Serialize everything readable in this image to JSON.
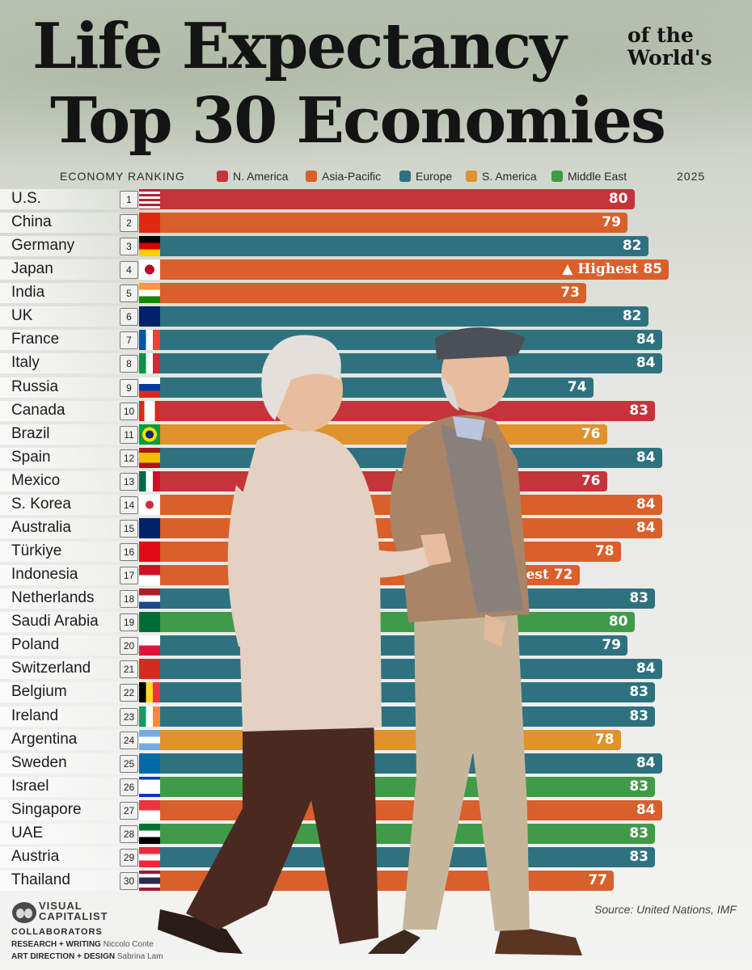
{
  "title": {
    "line1": "Life Expectancy",
    "side_line1": "of the",
    "side_line2": "World's",
    "line2": "Top 30 Economies"
  },
  "header": {
    "ranking_label": "ECONOMY RANKING",
    "year_label": "2025"
  },
  "legend": [
    {
      "label": "N. America",
      "color": "#c4343a"
    },
    {
      "label": "Asia-Pacific",
      "color": "#d95f2b"
    },
    {
      "label": "Europe",
      "color": "#2e7280"
    },
    {
      "label": "S. America",
      "color": "#e0922c"
    },
    {
      "label": "Middle East",
      "color": "#3f9b48"
    }
  ],
  "chart_data": {
    "type": "bar",
    "orientation": "horizontal",
    "title": "Life Expectancy of the World's Top 30 Economies",
    "xlabel": "",
    "ylabel": "",
    "xlim": [
      0,
      85
    ],
    "categories": [
      "U.S.",
      "China",
      "Germany",
      "Japan",
      "India",
      "UK",
      "France",
      "Italy",
      "Russia",
      "Canada",
      "Brazil",
      "Spain",
      "Mexico",
      "S. Korea",
      "Australia",
      "Türkiye",
      "Indonesia",
      "Netherlands",
      "Saudi Arabia",
      "Poland",
      "Switzerland",
      "Belgium",
      "Ireland",
      "Argentina",
      "Sweden",
      "Israel",
      "Singapore",
      "UAE",
      "Austria",
      "Thailand"
    ],
    "ranks": [
      "1",
      "2",
      "3",
      "4",
      "5",
      "6",
      "7",
      "8",
      "9",
      "10",
      "11",
      "12",
      "13",
      "14",
      "15",
      "16",
      "17",
      "18",
      "19",
      "20",
      "21",
      "22",
      "23",
      "24",
      "25",
      "26",
      "27",
      "28",
      "29",
      "30"
    ],
    "values": [
      80,
      79,
      82,
      85,
      73,
      82,
      84,
      84,
      74,
      83,
      76,
      84,
      76,
      84,
      84,
      78,
      72,
      83,
      80,
      79,
      84,
      83,
      83,
      78,
      84,
      83,
      84,
      83,
      83,
      77
    ],
    "regions": [
      "N. America",
      "Asia-Pacific",
      "Europe",
      "Asia-Pacific",
      "Asia-Pacific",
      "Europe",
      "Europe",
      "Europe",
      "Europe",
      "N. America",
      "S. America",
      "Europe",
      "N. America",
      "Asia-Pacific",
      "Asia-Pacific",
      "Asia-Pacific",
      "Asia-Pacific",
      "Europe",
      "Middle East",
      "Europe",
      "Europe",
      "Europe",
      "Europe",
      "S. America",
      "Europe",
      "Middle East",
      "Asia-Pacific",
      "Middle East",
      "Europe",
      "Asia-Pacific"
    ],
    "annotations": [
      {
        "category": "Japan",
        "text": "▲ Highest"
      },
      {
        "category": "Indonesia",
        "text": "▼ Lowest"
      }
    ],
    "year": "2025"
  },
  "footer": {
    "logo_line1": "VISUAL",
    "logo_line2": "CAPITALIST",
    "collaborators_label": "COLLABORATORS",
    "research_label": "RESEARCH + WRITING",
    "research_name": "Niccolo Conte",
    "art_label": "ART DIRECTION + DESIGN",
    "art_name": "Sabrina Lam",
    "source": "Source: United Nations, IMF"
  }
}
